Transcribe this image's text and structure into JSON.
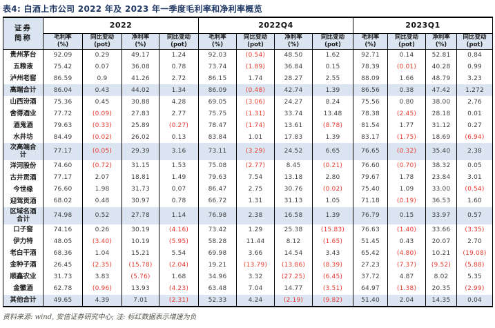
{
  "title": "表4: 白酒上市公司 2022 年及 2023 年一季度毛利率和净利率概览",
  "footer": "资料来源: wind, 安信证券研究中心; 注: 标红数据表示增速为负",
  "colors": {
    "red": "#e8392e",
    "header_bg": "#dbe5f1",
    "title_color": "#1f3864",
    "text": "#3f3f3f",
    "border": "#000000"
  },
  "table": {
    "name_header": [
      "证券",
      "简称"
    ],
    "groups": [
      "2022",
      "2022Q4",
      "2023Q1"
    ],
    "subcols": [
      [
        "毛利率",
        "(%)"
      ],
      [
        "同比变动",
        "(pot)"
      ],
      [
        "净利率",
        "(%)"
      ],
      [
        "同比变动",
        "(pot)"
      ]
    ],
    "rows": [
      {
        "name": "贵州茅台",
        "highlight": false,
        "values": [
          "92.09",
          "0.29",
          "49.17",
          "1.24",
          "92.03",
          "(0.54)",
          "48.50",
          "1.62",
          "92.71",
          "0.14",
          "52.81",
          "0.84"
        ]
      },
      {
        "name": "五粮液",
        "highlight": false,
        "values": [
          "75.42",
          "0.07",
          "36.08",
          "0.78",
          "73.74",
          "(1.89)",
          "36.84",
          "0.15",
          "78.39",
          "(0.01)",
          "40.28",
          "0.99"
        ]
      },
      {
        "name": "泸州老窖",
        "highlight": false,
        "values": [
          "86.59",
          "0.9",
          "41.26",
          "2.72",
          "86.15",
          "1.74",
          "28.27",
          "2.55",
          "88.09",
          "1.66",
          "48.79",
          "3.23"
        ]
      },
      {
        "name": "高端合计",
        "highlight": true,
        "values": [
          "86.04",
          "0.43",
          "44.02",
          "1.34",
          "86.09",
          "(0.48)",
          "42.74",
          "1.39",
          "86.56",
          "0.38",
          "47.42",
          "1.272"
        ]
      },
      {
        "name": "山西汾酒",
        "highlight": false,
        "values": [
          "75.36",
          "0.45",
          "30.88",
          "4.28",
          "69.05",
          "(3.06)",
          "24.27",
          "8.24",
          "75.56",
          "0.80",
          "38.00",
          "2.76"
        ]
      },
      {
        "name": "舍得酒业",
        "highlight": false,
        "values": [
          "77.72",
          "(0.09)",
          "27.83",
          "2.77",
          "75.75",
          "(1.31)",
          "33.74",
          "13.48",
          "78.38",
          "(2.45)",
          "28.18",
          "0.01"
        ]
      },
      {
        "name": "酒鬼酒",
        "highlight": false,
        "values": [
          "79.63",
          "(0.33)",
          "25.89",
          "(0.27)",
          "78.47",
          "(1.74)",
          "13.61",
          "(8.78)",
          "81.54",
          "1.77",
          "31.12",
          "0.27"
        ]
      },
      {
        "name": "水井坊",
        "highlight": false,
        "values": [
          "84.49",
          "(0.02)",
          "26.02",
          "0.13",
          "83.84",
          "1.01",
          "17.83",
          "1.39",
          "83.17",
          "(1.75)",
          "18.69",
          "(6.94)"
        ]
      },
      {
        "name": "次高端合计",
        "highlight": true,
        "values": [
          "77.17",
          "(0.05)",
          "29.39",
          "3.16",
          "73.11",
          "(3.29)",
          "24.52",
          "6.65",
          "76.65",
          "(0.32)",
          "35.40",
          "2.38"
        ]
      },
      {
        "name": "洋河股份",
        "highlight": false,
        "values": [
          "74.60",
          "(0.72)",
          "31.15",
          "1.53",
          "75.08",
          "(2.77)",
          "8.45",
          "(0.21)",
          "76.60",
          "(0.70)",
          "38.32",
          "0.05"
        ]
      },
      {
        "name": "古井贡酒",
        "highlight": false,
        "values": [
          "77.17",
          "2.07",
          "18.81",
          "1.49",
          "79.63",
          "7.54",
          "13.18",
          "2.80",
          "79.67",
          "1.78",
          "23.84",
          "3.01"
        ]
      },
      {
        "name": "今世缘",
        "highlight": false,
        "values": [
          "76.60",
          "1.98",
          "31.73",
          "0.07",
          "86.47",
          "2.75",
          "30.76",
          "(0.02)",
          "75.40",
          "1.09",
          "33.00",
          "(0.54)"
        ]
      },
      {
        "name": "迎驾贡酒",
        "highlight": false,
        "values": [
          "68.02",
          "0.48",
          "30.97",
          "0.78",
          "66.72",
          "1.31",
          "31.13",
          "1.05",
          "71.18",
          "(0.19)",
          "36.53",
          "1.60"
        ]
      },
      {
        "name": "区域名酒合计",
        "highlight": true,
        "values": [
          "74.98",
          "0.52",
          "27.78",
          "1.14",
          "76.98",
          "2.38",
          "16.58",
          "1.39",
          "76.79",
          "0.15",
          "33.97",
          "0.57"
        ]
      },
      {
        "name": "口子窖",
        "highlight": false,
        "values": [
          "74.16",
          "0.26",
          "30.19",
          "(4.16)",
          "73.42",
          "1.29",
          "25.38",
          "(15.83)",
          "76.63",
          "(1.40)",
          "33.66",
          "(3.35)"
        ]
      },
      {
        "name": "伊力特",
        "highlight": false,
        "values": [
          "48.05",
          "(3.40)",
          "10.19",
          "(5.95)",
          "58.28",
          "11.44",
          "8.12",
          "(1.65)",
          "51.45",
          "0.43",
          "20.07",
          "2.70"
        ]
      },
      {
        "name": "老白干酒",
        "highlight": false,
        "values": [
          "68.36",
          "1.04",
          "15.21",
          "5.54",
          "69.98",
          "3.66",
          "14.54",
          "3.43",
          "65.42",
          "(4.80)",
          "10.21",
          "(19.08)"
        ]
      },
      {
        "name": "金种子酒",
        "highlight": false,
        "values": [
          "26.45",
          "(2.35)",
          "(15.78)",
          "(2.04)",
          "19.21",
          "(13.79)",
          "(13.86)",
          "(8.39)",
          "27.23",
          "(7.37)",
          "(9.52)",
          "(5.88)"
        ]
      },
      {
        "name": "顺鑫农业",
        "highlight": false,
        "values": [
          "31.73",
          "3.83",
          "(5.76)",
          "1.68",
          "34.96",
          "3.32",
          "(27.25)",
          "(6.45)",
          "37.72",
          "4.87",
          "8.02",
          "5.35"
        ]
      },
      {
        "name": "金徽酒",
        "highlight": false,
        "values": [
          "62.78",
          "(0.96)",
          "13.93",
          "(4.23)",
          "63.48",
          "7.04",
          "14.77",
          "(3.51)",
          "64.97",
          "(1.38)",
          "20.35",
          "(2.99)"
        ]
      },
      {
        "name": "其他合计",
        "highlight": true,
        "values": [
          "49.65",
          "4.39",
          "7.01",
          "(2.31)",
          "52.33",
          "4.24",
          "(2.19)",
          "(9.82)",
          "51.40",
          "2.04",
          "14.35",
          "0.04"
        ]
      }
    ]
  }
}
